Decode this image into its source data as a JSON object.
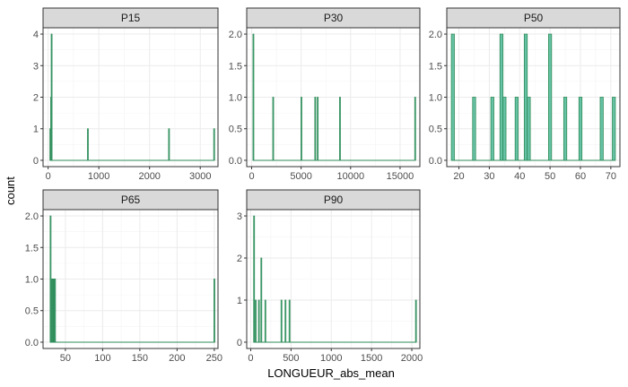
{
  "chart_data": {
    "type": "bar",
    "subtype": "faceted-histogram",
    "xlabel": "LONGUEUR_abs_mean",
    "ylabel": "count",
    "fill_color": "#66C2A5",
    "outline_color": "#2E8B57",
    "grid": true,
    "facets": [
      {
        "name": "P15",
        "xlim": [
          -100,
          3350
        ],
        "ylim": [
          -0.2,
          4.2
        ],
        "x_ticks": [
          0,
          1000,
          2000,
          3000
        ],
        "y_ticks": [
          0,
          1,
          2,
          3,
          4
        ],
        "bin_width": 10,
        "bins": [
          {
            "x": 40,
            "count": 1
          },
          {
            "x": 55,
            "count": 2
          },
          {
            "x": 65,
            "count": 4
          },
          {
            "x": 780,
            "count": 1
          },
          {
            "x": 2380,
            "count": 1
          },
          {
            "x": 3270,
            "count": 1
          }
        ]
      },
      {
        "name": "P30",
        "xlim": [
          -500,
          17000
        ],
        "ylim": [
          -0.1,
          2.1
        ],
        "x_ticks": [
          0,
          5000,
          10000,
          15000
        ],
        "y_ticks": [
          0.0,
          0.5,
          1.0,
          1.5,
          2.0
        ],
        "bin_width": 40,
        "bins": [
          {
            "x": 150,
            "count": 2
          },
          {
            "x": 2150,
            "count": 1
          },
          {
            "x": 5000,
            "count": 1
          },
          {
            "x": 6400,
            "count": 1
          },
          {
            "x": 6650,
            "count": 1
          },
          {
            "x": 8900,
            "count": 1
          },
          {
            "x": 16500,
            "count": 1
          }
        ]
      },
      {
        "name": "P50",
        "xlim": [
          16,
          73
        ],
        "ylim": [
          -0.1,
          2.1
        ],
        "x_ticks": [
          20,
          30,
          40,
          50,
          60,
          70
        ],
        "y_ticks": [
          0.0,
          0.5,
          1.0,
          1.5,
          2.0
        ],
        "bin_width": 1,
        "bins": [
          {
            "x": 18,
            "count": 2
          },
          {
            "x": 25,
            "count": 1
          },
          {
            "x": 31,
            "count": 1
          },
          {
            "x": 34,
            "count": 2
          },
          {
            "x": 35,
            "count": 1
          },
          {
            "x": 39,
            "count": 1
          },
          {
            "x": 42,
            "count": 2
          },
          {
            "x": 43,
            "count": 1
          },
          {
            "x": 50,
            "count": 2
          },
          {
            "x": 55,
            "count": 1
          },
          {
            "x": 60,
            "count": 1
          },
          {
            "x": 67,
            "count": 1
          },
          {
            "x": 71,
            "count": 1
          }
        ]
      },
      {
        "name": "P65",
        "xlim": [
          20,
          255
        ],
        "ylim": [
          -0.1,
          2.1
        ],
        "x_ticks": [
          50,
          100,
          150,
          200,
          250
        ],
        "y_ticks": [
          0.0,
          0.5,
          1.0,
          1.5,
          2.0
        ],
        "bin_width": 1,
        "bins": [
          {
            "x": 30,
            "count": 2
          },
          {
            "x": 31,
            "count": 1
          },
          {
            "x": 32,
            "count": 1
          },
          {
            "x": 33,
            "count": 1
          },
          {
            "x": 34,
            "count": 1
          },
          {
            "x": 35,
            "count": 1
          },
          {
            "x": 36,
            "count": 1
          },
          {
            "x": 250,
            "count": 1
          }
        ]
      },
      {
        "name": "P90",
        "xlim": [
          -50,
          2100
        ],
        "ylim": [
          -0.15,
          3.15
        ],
        "x_ticks": [
          0,
          500,
          1000,
          1500,
          2000
        ],
        "y_ticks": [
          0,
          1,
          2,
          3
        ],
        "bin_width": 8,
        "bins": [
          {
            "x": 40,
            "count": 3
          },
          {
            "x": 60,
            "count": 1
          },
          {
            "x": 100,
            "count": 1
          },
          {
            "x": 130,
            "count": 2
          },
          {
            "x": 180,
            "count": 1
          },
          {
            "x": 380,
            "count": 1
          },
          {
            "x": 430,
            "count": 1
          },
          {
            "x": 480,
            "count": 1
          },
          {
            "x": 2050,
            "count": 1
          }
        ]
      }
    ]
  }
}
